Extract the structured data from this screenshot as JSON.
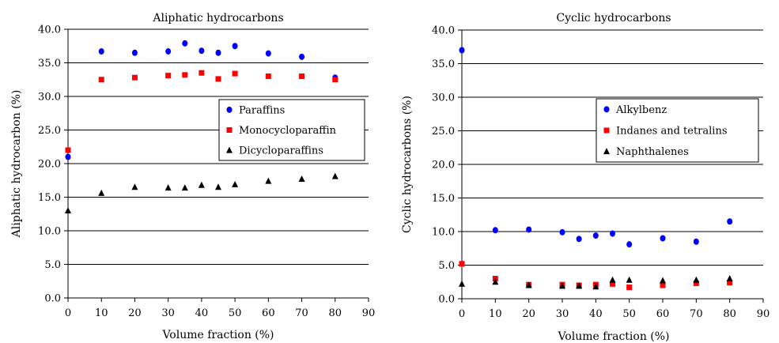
{
  "chart_data": [
    {
      "type": "scatter",
      "title": "Aliphatic hydrocarbons",
      "xlabel": "Volume fraction (%)",
      "ylabel": "Aliphatic hydrocarbon (%)",
      "xlim": [
        0,
        90
      ],
      "ylim": [
        0,
        40
      ],
      "xticks": [
        "0",
        "10",
        "20",
        "30",
        "40",
        "50",
        "60",
        "70",
        "80",
        "90"
      ],
      "yticks": [
        "0.0",
        "5.0",
        "10.0",
        "15.0",
        "20.0",
        "25.0",
        "30.0",
        "35.0",
        "40.0"
      ],
      "grid": "horizontal",
      "legend_position": "right",
      "series": [
        {
          "name": "Paraffins",
          "marker": "circle",
          "color": "#0000ff",
          "x": [
            0,
            10,
            20,
            30,
            35,
            40,
            45,
            50,
            60,
            70,
            80
          ],
          "y": [
            21.0,
            36.7,
            36.5,
            36.7,
            37.9,
            36.8,
            36.5,
            37.5,
            36.4,
            35.9,
            32.8
          ]
        },
        {
          "name": "Monocycloparaffin",
          "marker": "square",
          "color": "#ff0000",
          "x": [
            0,
            10,
            20,
            30,
            35,
            40,
            45,
            50,
            60,
            70,
            80
          ],
          "y": [
            22.0,
            32.5,
            32.8,
            33.1,
            33.2,
            33.5,
            32.6,
            33.4,
            33.0,
            33.0,
            32.5
          ]
        },
        {
          "name": "Dicycloparaffins",
          "marker": "triangle",
          "color": "#000000",
          "x": [
            0,
            10,
            20,
            30,
            35,
            40,
            45,
            50,
            60,
            70,
            80
          ],
          "y": [
            13.0,
            15.6,
            16.5,
            16.4,
            16.4,
            16.8,
            16.5,
            16.9,
            17.4,
            17.7,
            18.1
          ]
        }
      ]
    },
    {
      "type": "scatter",
      "title": "Cyclic hydrocarbons",
      "xlabel": "Volume fraction (%)",
      "ylabel": "Cyclic hydrocarbons (%)",
      "xlim": [
        0,
        90
      ],
      "ylim": [
        0,
        40
      ],
      "xticks": [
        "0",
        "10",
        "20",
        "30",
        "40",
        "50",
        "60",
        "70",
        "80",
        "90"
      ],
      "yticks": [
        "0.0",
        "5.0",
        "10.0",
        "15.0",
        "20.0",
        "25.0",
        "30.0",
        "35.0",
        "40.0"
      ],
      "grid": "horizontal",
      "legend_position": "right",
      "series": [
        {
          "name": "Alkylbenz",
          "marker": "circle",
          "color": "#0000ff",
          "x": [
            0,
            10,
            20,
            30,
            35,
            40,
            45,
            50,
            60,
            70,
            80
          ],
          "y": [
            37.0,
            10.2,
            10.3,
            9.9,
            8.9,
            9.4,
            9.7,
            8.1,
            9.0,
            8.5,
            11.5
          ]
        },
        {
          "name": "Indanes and tetralins",
          "marker": "square",
          "color": "#ff0000",
          "x": [
            0,
            10,
            20,
            30,
            35,
            40,
            45,
            50,
            60,
            70,
            80
          ],
          "y": [
            5.2,
            3.0,
            2.1,
            2.1,
            2.0,
            2.1,
            2.2,
            1.7,
            2.0,
            2.3,
            2.4
          ]
        },
        {
          "name": "Naphthalenes",
          "marker": "triangle",
          "color": "#000000",
          "x": [
            0,
            10,
            20,
            30,
            35,
            40,
            45,
            50,
            60,
            70,
            80
          ],
          "y": [
            2.2,
            2.5,
            2.0,
            1.9,
            1.9,
            1.8,
            2.8,
            2.8,
            2.7,
            2.8,
            3.0
          ]
        }
      ]
    }
  ]
}
